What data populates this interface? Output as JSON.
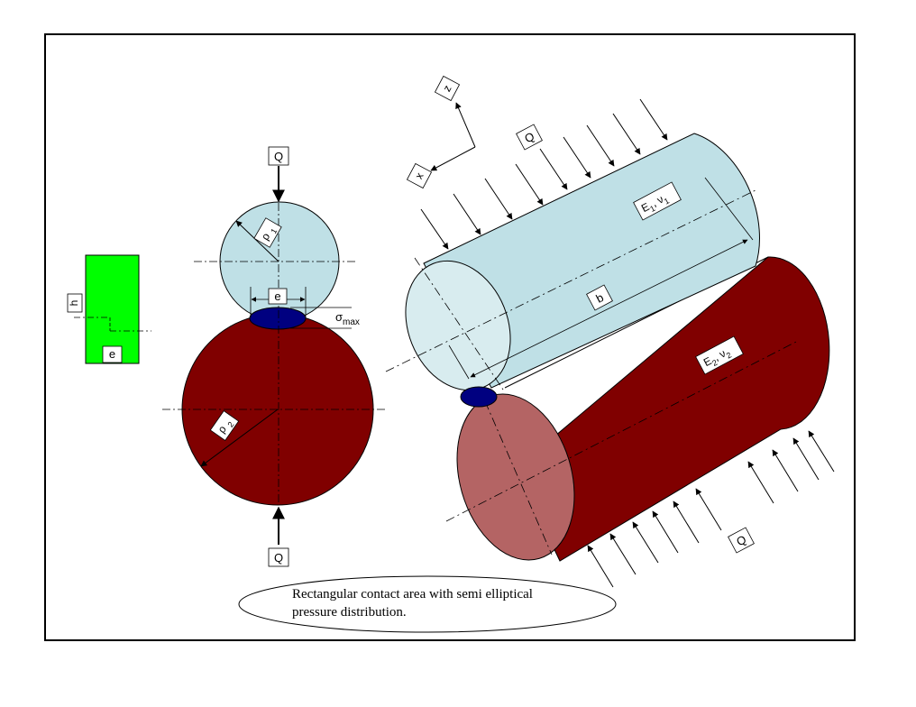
{
  "labels": {
    "load_top": "Q",
    "load_bottom": "Q",
    "load_upper_3d": "Q",
    "load_lower_3d": "Q",
    "rho1": "ρ",
    "rho1_sub": "1",
    "rho2": "ρ",
    "rho2_sub": "2",
    "contact_width": "e",
    "rect_width": "e",
    "rect_height": "h",
    "sigma": "σ",
    "sigma_sub": "max",
    "length": "b",
    "axis_z": "z",
    "axis_x": "x",
    "e1": "E",
    "e1_sub": "1",
    "e1_sep": ", ν",
    "e1_nu_sub": "1",
    "e2": "E",
    "e2_sub": "2",
    "e2_sep": ", ν",
    "e2_nu_sub": "2"
  },
  "caption": {
    "line1": "Rectangular contact area with semi elliptical",
    "line2": "pressure distribution."
  },
  "colors": {
    "upper_body": "#bfe0e6",
    "upper_end": "#d8ecef",
    "lower_body": "#800000",
    "lower_end": "#b46464",
    "contact": "#000080",
    "rect": "#00ff00",
    "frame": "#000000"
  }
}
